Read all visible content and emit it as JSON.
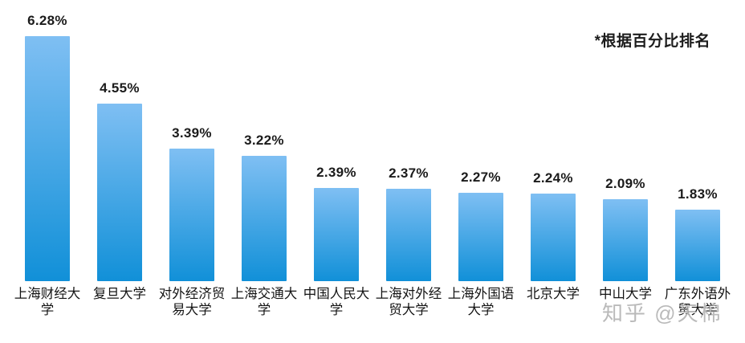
{
  "chart_data": {
    "type": "bar",
    "title": "",
    "xlabel": "",
    "ylabel": "",
    "note": "*根据百分比排名",
    "categories": [
      "上海财经大学",
      "复旦大学",
      "对外经济贸易大学",
      "上海交通大学",
      "中国人民大学",
      "上海对外经贸大学",
      "上海外国语大学",
      "北京大学",
      "中山大学",
      "广东外语外贸大学"
    ],
    "category_display": [
      "上海财经大\n学",
      "复旦大学",
      "对外经济贸\n易大学",
      "上海交通大\n学",
      "中国人民大\n学",
      "上海对外经\n贸大学",
      "上海外国语\n大学",
      "北京大学",
      "中山大学",
      "广东外语外\n贸大学"
    ],
    "values": [
      6.28,
      4.55,
      3.39,
      3.22,
      2.39,
      2.37,
      2.27,
      2.24,
      2.09,
      1.83
    ],
    "value_labels": [
      "6.28%",
      "4.55%",
      "3.39%",
      "3.22%",
      "2.39%",
      "2.37%",
      "2.27%",
      "2.24%",
      "2.09%",
      "1.83%"
    ],
    "ylim": [
      0,
      6.28
    ],
    "grid": false,
    "legend": false,
    "bar_color_top": "#7FBFF3",
    "bar_color_bottom": "#1190D8"
  },
  "watermark": {
    "text": "知乎 @天棉"
  }
}
